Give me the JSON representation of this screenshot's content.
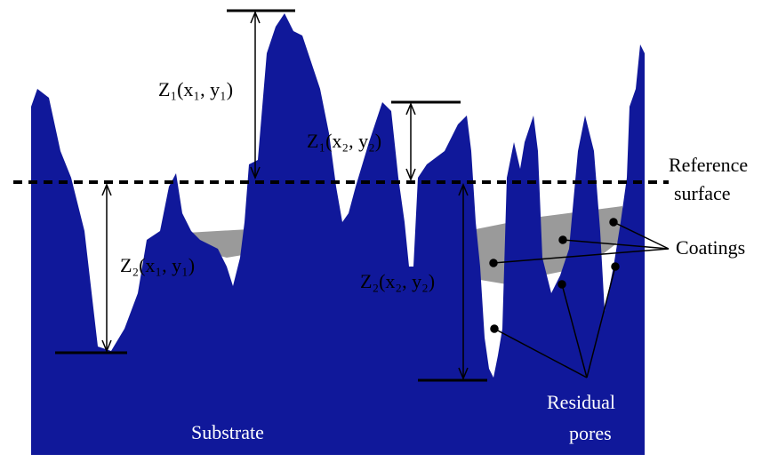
{
  "labels": {
    "z1_x1y1": "Z₁(x₁, y₁)",
    "z1_x2y2": "Z₁(x₂, y₂)",
    "z2_x1y1": "Z₂(x₁, y₁)",
    "z2_x2y2": "Z₂(x₂, y₂)",
    "reference": [
      "Reference",
      "surface"
    ],
    "coatings": "Coatings",
    "residual_pores": [
      "Residual",
      "pores"
    ],
    "substrate": "Substrate"
  }
}
